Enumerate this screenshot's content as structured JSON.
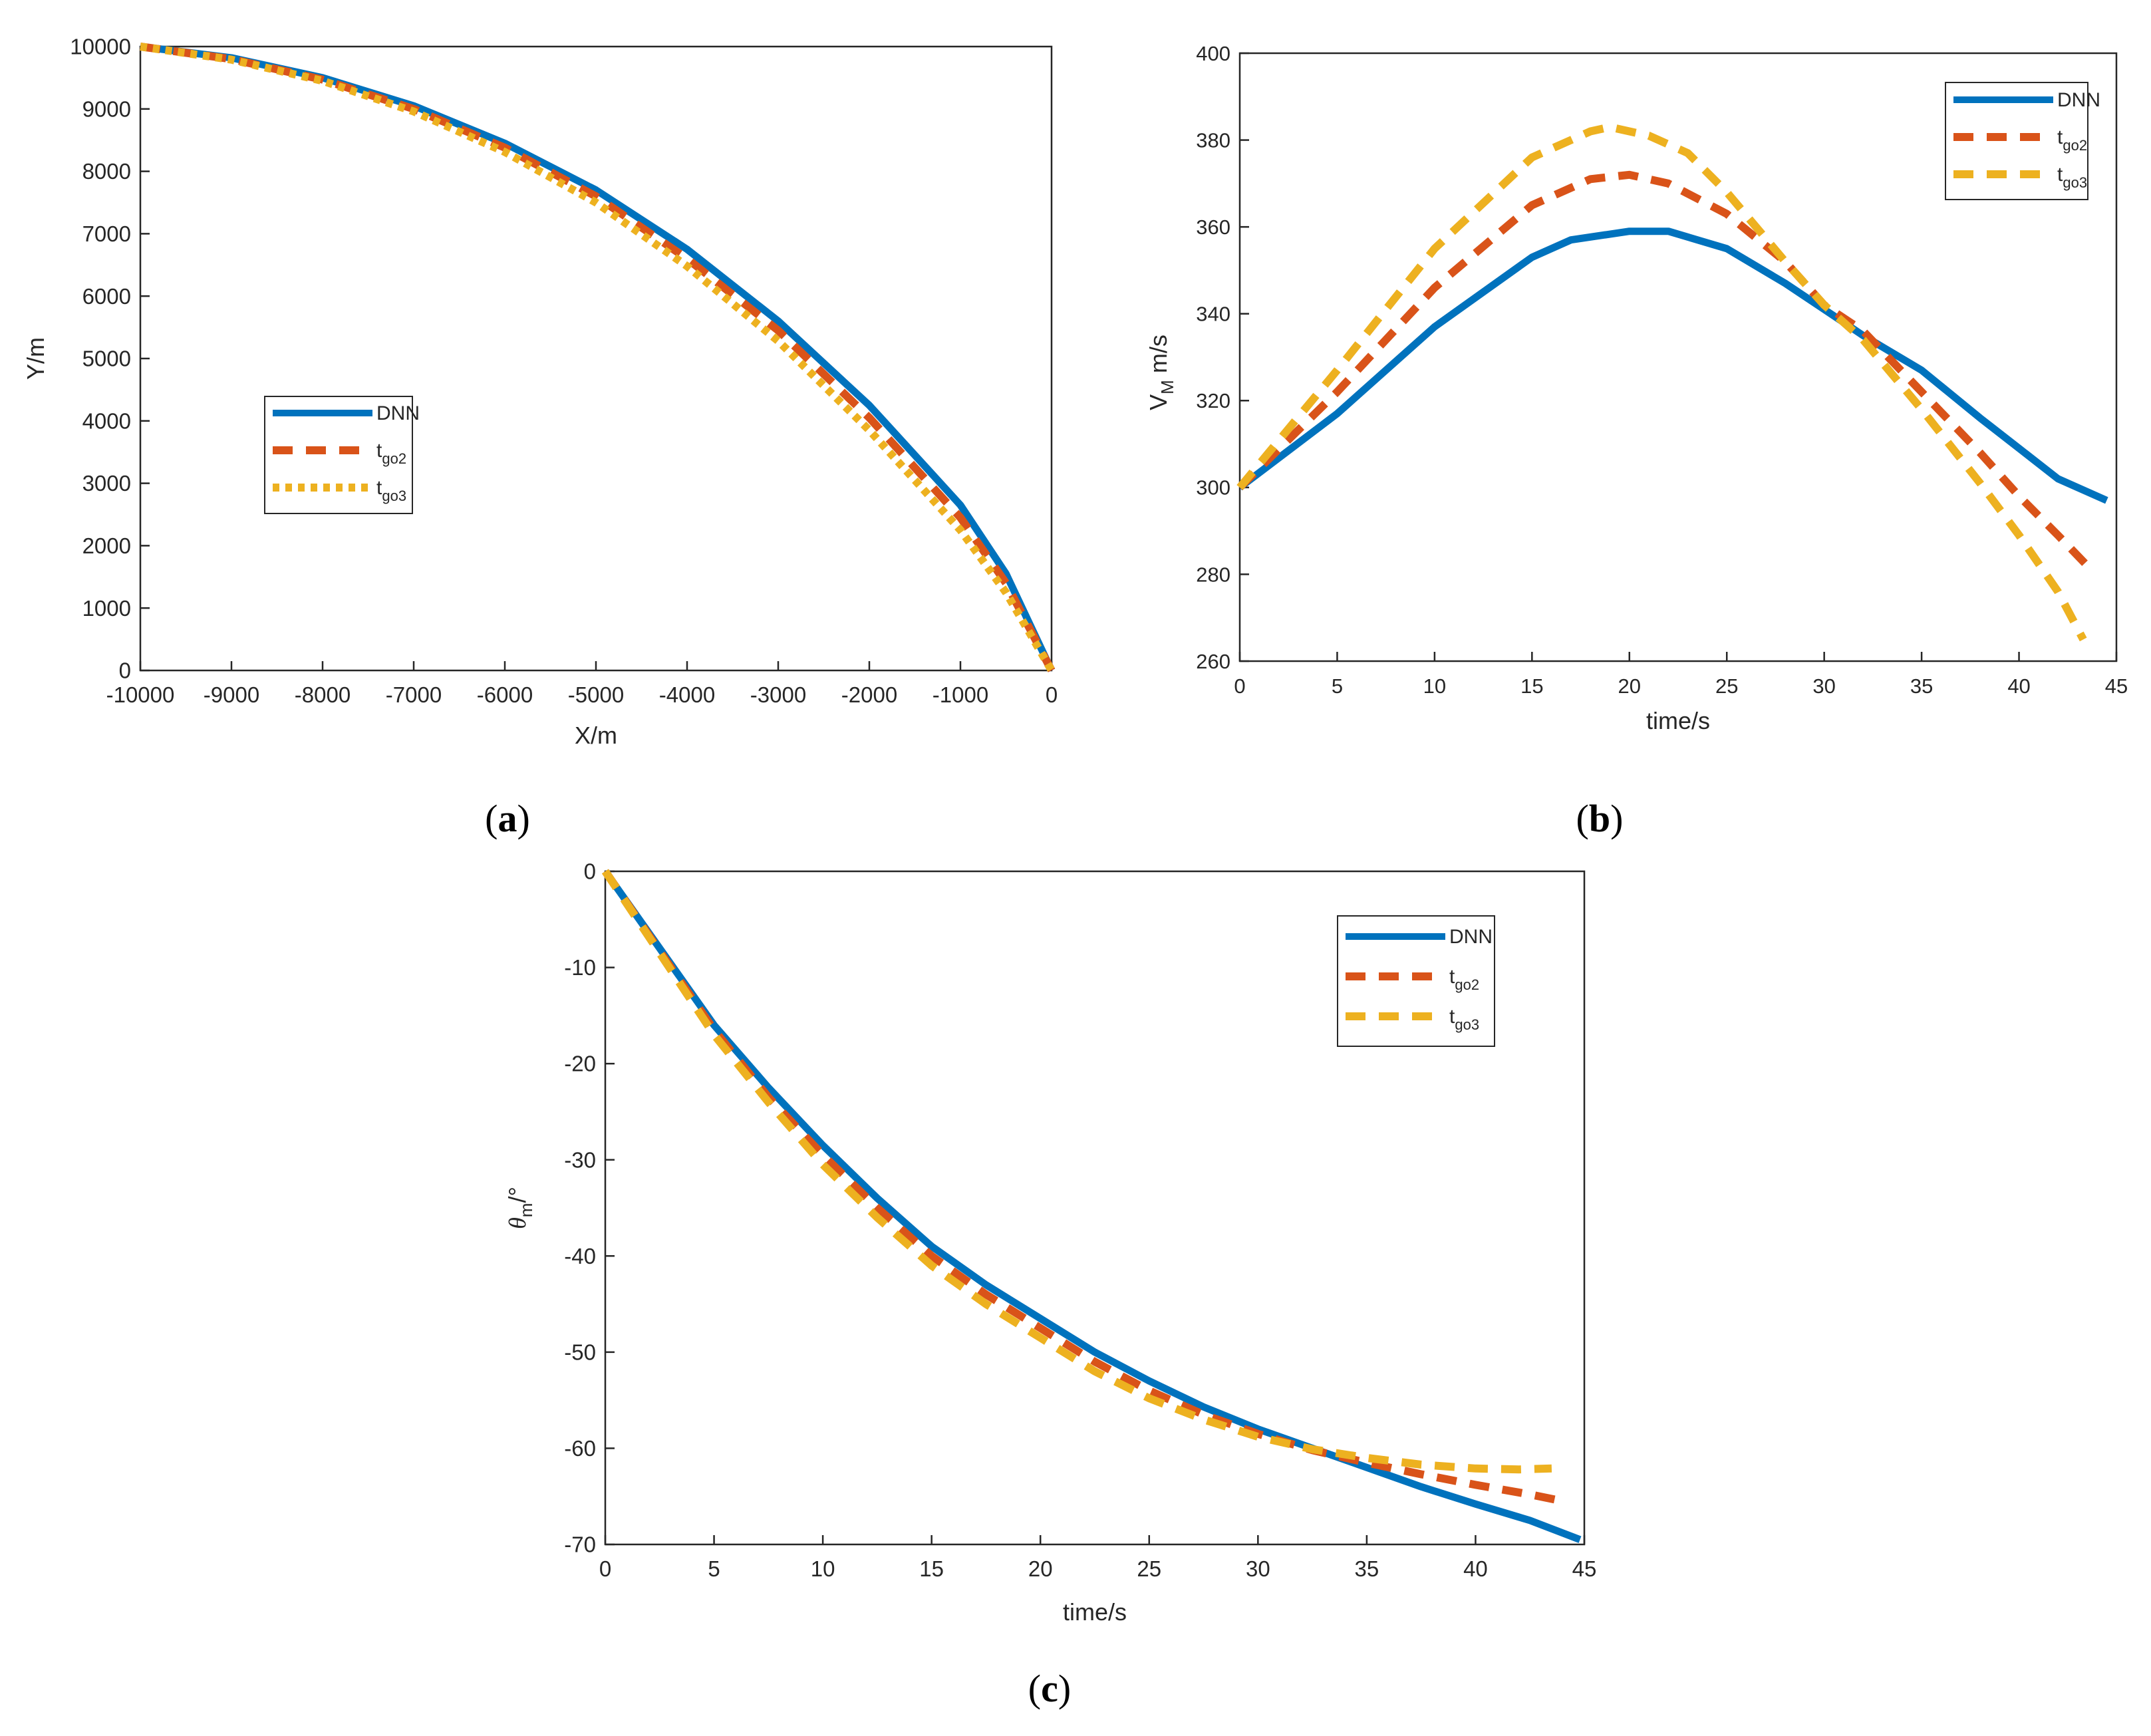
{
  "colors": {
    "dnn": "#0072BD",
    "tgo2": "#D95319",
    "tgo3": "#EDB120",
    "axis": "#262626"
  },
  "chart_data": [
    {
      "type": "line",
      "panel_label": "a",
      "xlabel": "X/m",
      "ylabel": "Y/m",
      "xlim": [
        -10000,
        0
      ],
      "ylim": [
        0,
        10000
      ],
      "xticks": [
        -10000,
        -9000,
        -8000,
        -7000,
        -6000,
        -5000,
        -4000,
        -3000,
        -2000,
        -1000,
        0
      ],
      "yticks": [
        0,
        1000,
        2000,
        3000,
        4000,
        5000,
        6000,
        7000,
        8000,
        9000,
        10000
      ],
      "legend_position": "middle-left",
      "series": [
        {
          "name": "DNN",
          "label_main": "DNN",
          "label_sub": "",
          "style": "solid",
          "x": [
            -10000,
            -9000,
            -8000,
            -7000,
            -6000,
            -5000,
            -4000,
            -3000,
            -2000,
            -1000,
            -500,
            0
          ],
          "y": [
            10000,
            9820,
            9500,
            9050,
            8450,
            7700,
            6750,
            5600,
            4250,
            2650,
            1550,
            0
          ]
        },
        {
          "name": "tgo2",
          "label_main": "t",
          "label_sub": "go2",
          "style": "dashed",
          "x": [
            -10000,
            -9000,
            -8000,
            -7000,
            -6000,
            -5000,
            -4000,
            -3000,
            -2000,
            -1000,
            -500,
            0
          ],
          "y": [
            10000,
            9800,
            9470,
            9000,
            8380,
            7600,
            6600,
            5450,
            4050,
            2450,
            1400,
            0
          ]
        },
        {
          "name": "tgo3",
          "label_main": "t",
          "label_sub": "go3",
          "style": "dotted",
          "x": [
            -10000,
            -9000,
            -8000,
            -7000,
            -6000,
            -5000,
            -4000,
            -3000,
            -2000,
            -1000,
            -500,
            0
          ],
          "y": [
            10000,
            9790,
            9450,
            8960,
            8310,
            7500,
            6480,
            5280,
            3850,
            2250,
            1250,
            0
          ]
        }
      ]
    },
    {
      "type": "line",
      "panel_label": "b",
      "xlabel": "time/s",
      "ylabel_main": "V",
      "ylabel_sub": "M",
      "ylabel_unit": " m/s",
      "xlim": [
        0,
        45
      ],
      "ylim": [
        260,
        400
      ],
      "xticks": [
        0,
        5,
        10,
        15,
        20,
        25,
        30,
        35,
        40,
        45
      ],
      "yticks": [
        260,
        280,
        300,
        320,
        340,
        360,
        380,
        400
      ],
      "legend_position": "top-right",
      "series": [
        {
          "name": "DNN",
          "label_main": "DNN",
          "label_sub": "",
          "style": "solid",
          "x": [
            0,
            5,
            10,
            15,
            17,
            20,
            22,
            25,
            28,
            30,
            32,
            35,
            38,
            40,
            42,
            44.5
          ],
          "y": [
            300,
            317,
            337,
            353,
            357,
            359,
            359,
            355,
            347,
            341,
            335,
            327,
            316,
            309,
            302,
            297
          ]
        },
        {
          "name": "tgo2",
          "label_main": "t",
          "label_sub": "go2",
          "style": "dashed",
          "x": [
            0,
            5,
            10,
            15,
            18,
            20,
            22,
            25,
            28,
            30,
            32,
            35,
            38,
            40,
            42,
            43.5
          ],
          "y": [
            300,
            322,
            346,
            365,
            371,
            372,
            370,
            363,
            352,
            342,
            336,
            322,
            308,
            298,
            289,
            282
          ]
        },
        {
          "name": "tgo3",
          "label_main": "t",
          "label_sub": "go3",
          "style": "dashed",
          "x": [
            0,
            5,
            10,
            15,
            18,
            19,
            21,
            23,
            25,
            28,
            30,
            32,
            35,
            38,
            40,
            42,
            43.3
          ],
          "y": [
            300,
            327,
            355,
            376,
            382,
            383,
            381,
            377,
            368,
            352,
            342,
            334,
            318,
            301,
            289,
            276,
            265
          ]
        }
      ]
    },
    {
      "type": "line",
      "panel_label": "c",
      "xlabel": "time/s",
      "ylabel_main": "θ",
      "ylabel_sub": "m",
      "ylabel_unit": "/°",
      "xlim": [
        0,
        45
      ],
      "ylim": [
        -70,
        0
      ],
      "xticks": [
        0,
        5,
        10,
        15,
        20,
        25,
        30,
        35,
        40,
        45
      ],
      "yticks": [
        -70,
        -60,
        -50,
        -40,
        -30,
        -20,
        -10,
        0
      ],
      "legend_position": "top-right",
      "series": [
        {
          "name": "DNN",
          "label_main": "DNN",
          "label_sub": "",
          "style": "solid",
          "x": [
            0,
            2.5,
            5,
            7.5,
            10,
            12.5,
            15,
            17.5,
            20,
            22.5,
            25,
            27.5,
            30,
            32.5,
            35,
            37.5,
            40,
            42.5,
            44.8
          ],
          "y": [
            0,
            -8,
            -16,
            -22.5,
            -28.5,
            -34,
            -39,
            -43,
            -46.5,
            -50,
            -53,
            -55.7,
            -58,
            -60,
            -62,
            -64,
            -65.8,
            -67.5,
            -69.5
          ]
        },
        {
          "name": "tgo2",
          "label_main": "t",
          "label_sub": "go2",
          "style": "dashed",
          "x": [
            0,
            2.5,
            5,
            7.5,
            10,
            12.5,
            15,
            17.5,
            20,
            22.5,
            25,
            27.5,
            30,
            32.5,
            35,
            37.5,
            40,
            42.5,
            44
          ],
          "y": [
            0,
            -8.3,
            -16.5,
            -23.5,
            -29.5,
            -35,
            -40,
            -44,
            -47.5,
            -51,
            -54,
            -56.5,
            -58.5,
            -60.2,
            -61.5,
            -62.7,
            -63.8,
            -64.8,
            -65.5
          ]
        },
        {
          "name": "tgo3",
          "label_main": "t",
          "label_sub": "go3",
          "style": "dashed",
          "x": [
            0,
            2.5,
            5,
            7.5,
            10,
            12.5,
            15,
            17.5,
            20,
            22.5,
            25,
            27.5,
            30,
            32.5,
            35,
            37.5,
            40,
            42,
            43.5
          ],
          "y": [
            0,
            -8.5,
            -17,
            -24,
            -30.5,
            -36,
            -41,
            -45,
            -48.5,
            -52,
            -54.8,
            -57,
            -58.8,
            -60.1,
            -61,
            -61.7,
            -62.1,
            -62.2,
            -62.1
          ]
        }
      ]
    }
  ]
}
